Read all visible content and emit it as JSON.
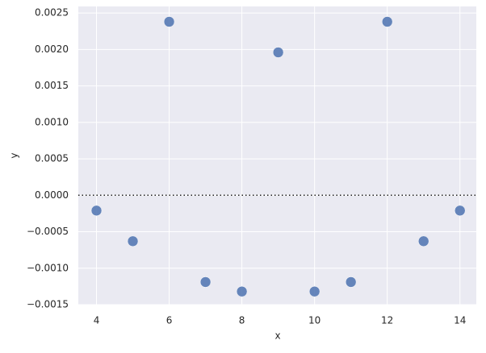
{
  "chart_data": {
    "type": "scatter",
    "x_label": "x",
    "y_label": "y",
    "x": [
      4,
      5,
      6,
      7,
      8,
      9,
      10,
      11,
      12,
      13,
      14
    ],
    "series": [
      {
        "color": "#4c72b0",
        "values": [
          -0.00021,
          -0.00063,
          0.00238,
          -0.00119,
          -0.00132,
          0.00196,
          -0.00132,
          -0.00119,
          0.00238,
          -0.00063,
          -0.00021
        ]
      }
    ],
    "xlim": [
      3.5,
      14.45
    ],
    "ylim": [
      -0.0015,
      0.00259
    ],
    "xticks": [
      4,
      6,
      8,
      10,
      12,
      14
    ],
    "yticks": [
      {
        "value": 0.0025,
        "label": "0.0025"
      },
      {
        "value": 0.002,
        "label": "0.0020"
      },
      {
        "value": 0.0015,
        "label": "0.0015"
      },
      {
        "value": 0.001,
        "label": "0.0010"
      },
      {
        "value": 0.0005,
        "label": "0.0005"
      },
      {
        "value": 0,
        "label": "0.0000"
      },
      {
        "value": -0.0005,
        "label": "−0.0005"
      },
      {
        "value": -0.001,
        "label": "−0.0010"
      },
      {
        "value": -0.0015,
        "label": "−0.0015"
      }
    ],
    "reference_line": 0,
    "grid": true
  }
}
